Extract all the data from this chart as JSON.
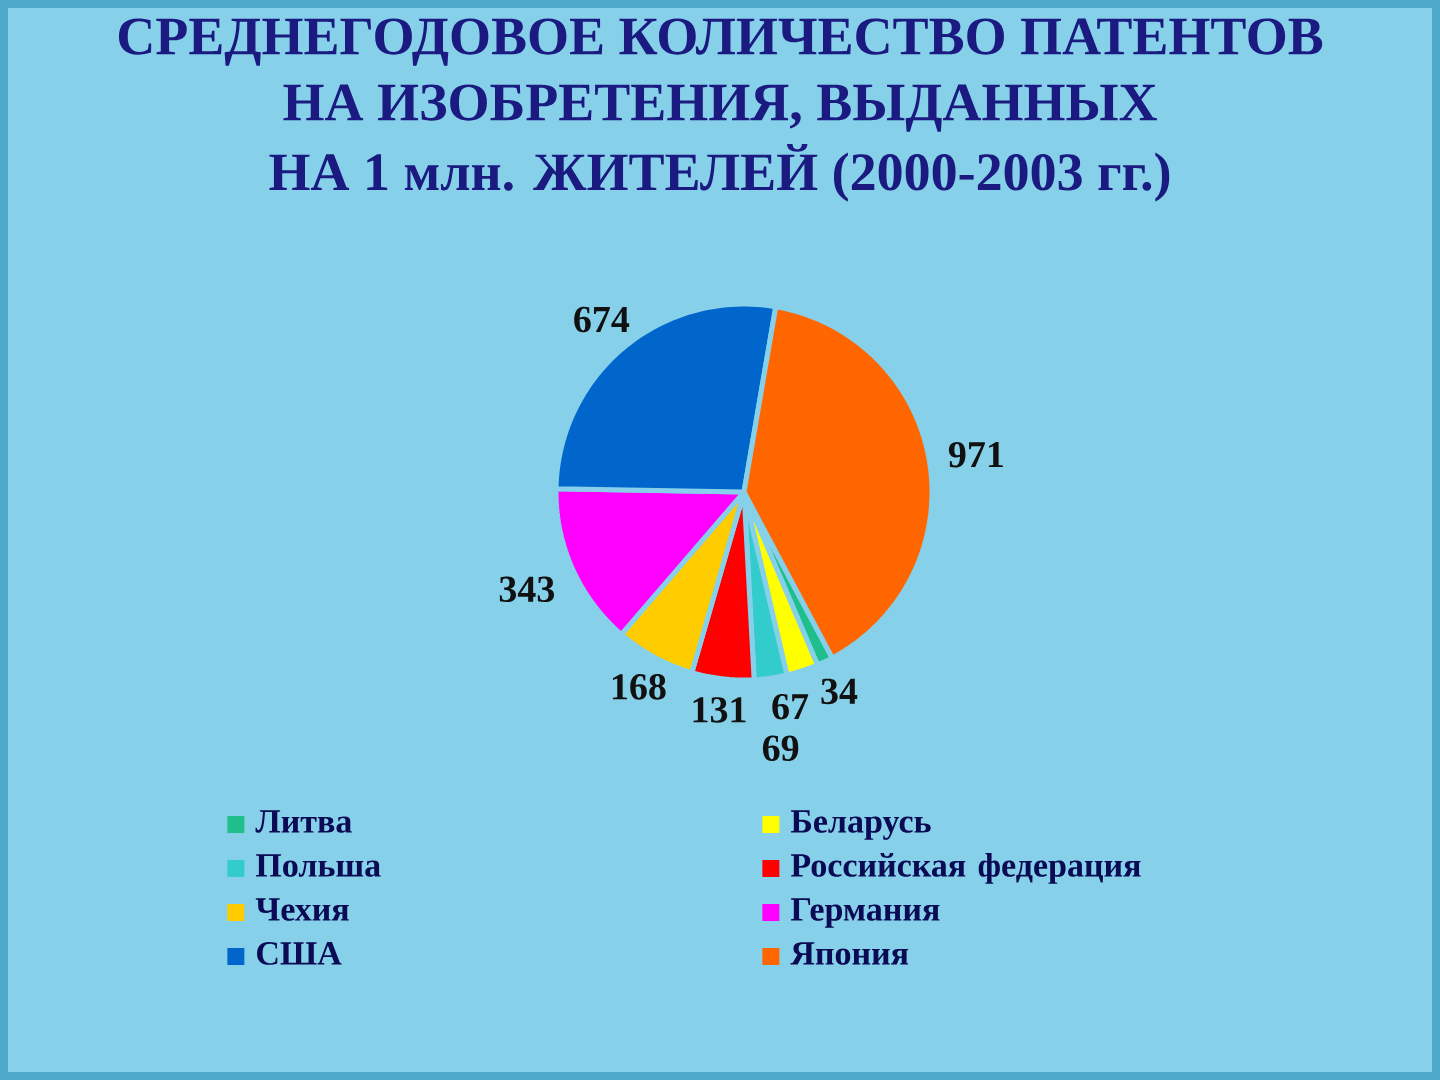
{
  "chart_data": {
    "type": "pie",
    "title": "СРЕДНЕГОДОВОЕ КОЛИЧЕСТВО ПАТЕНТОВ НА ИЗОБРЕТЕНИЯ, ВЫДАННЫХ",
    "subtitle": "НА 1 млн. ЖИТЕЛЕЙ (2000-2003 гг.)",
    "categories": [
      "Литва",
      "Беларусь",
      "Польша",
      "Российская федерация",
      "Чехия",
      "Германия",
      "США",
      "Япония"
    ],
    "values": [
      34,
      67,
      69,
      131,
      168,
      343,
      674,
      971
    ],
    "colors": [
      "#1fbf8c",
      "#ffff00",
      "#33cccc",
      "#ff0000",
      "#ffcc00",
      "#ff00ff",
      "#0066cc",
      "#ff6600"
    ],
    "data_labels": true,
    "legend": "bottom"
  }
}
